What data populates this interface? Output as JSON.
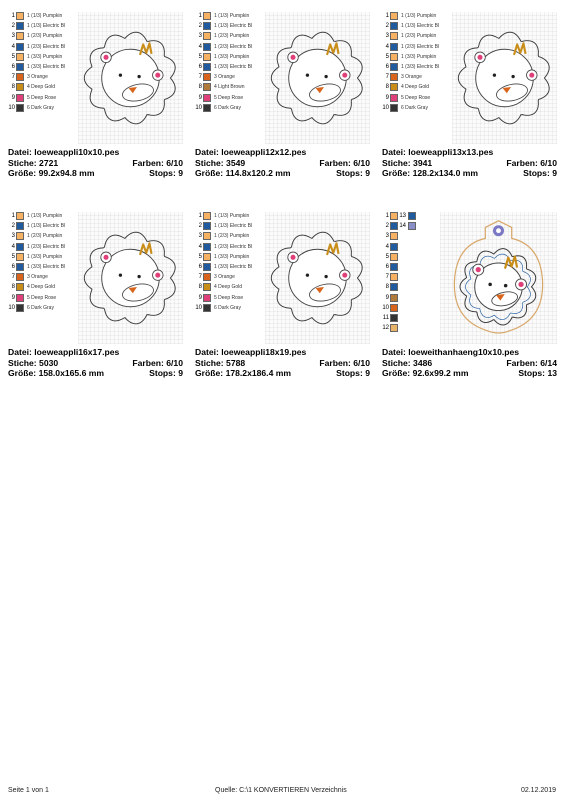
{
  "cards": [
    {
      "colors": [
        {
          "n": "1",
          "name": "1 (1/3) Pumpkin",
          "hex": "#F6B162"
        },
        {
          "n": "2",
          "name": "1 (1/3) Electric Bl",
          "hex": "#1F5B9E"
        },
        {
          "n": "3",
          "name": "1 (2/3) Pumpkin",
          "hex": "#F6B162"
        },
        {
          "n": "4",
          "name": "1 (2/3) Electric Bl",
          "hex": "#1F5B9E"
        },
        {
          "n": "5",
          "name": "1 (3/3) Pumpkin",
          "hex": "#F6B162"
        },
        {
          "n": "6",
          "name": "1 (3/3) Electric Bl",
          "hex": "#1F5B9E"
        },
        {
          "n": "7",
          "name": "3 Orange",
          "hex": "#D9651C"
        },
        {
          "n": "8",
          "name": "4 Deep Gold",
          "hex": "#C98E1A"
        },
        {
          "n": "9",
          "name": "5 Deep Rose",
          "hex": "#E0407A"
        },
        {
          "n": "10",
          "name": "6 Dark Gray",
          "hex": "#333333"
        }
      ],
      "datei_label": "Datei:",
      "file": "loeweappli10x10.pes",
      "stiche_label": "Stiche:",
      "stiche": "2721",
      "farben_label": "Farben:",
      "farben": "6/10",
      "groesse_label": "Größe:",
      "groesse": "99.2x94.8 mm",
      "stops_label": "Stops:",
      "stops": "9"
    },
    {
      "colors": [
        {
          "n": "1",
          "name": "1 (1/3) Pumpkin",
          "hex": "#F6B162"
        },
        {
          "n": "2",
          "name": "1 (1/3) Electric Bl",
          "hex": "#1F5B9E"
        },
        {
          "n": "3",
          "name": "1 (2/3) Pumpkin",
          "hex": "#F6B162"
        },
        {
          "n": "4",
          "name": "1 (2/3) Electric Bl",
          "hex": "#1F5B9E"
        },
        {
          "n": "5",
          "name": "1 (3/3) Pumpkin",
          "hex": "#F6B162"
        },
        {
          "n": "6",
          "name": "1 (3/3) Electric Bl",
          "hex": "#1F5B9E"
        },
        {
          "n": "7",
          "name": "3 Orange",
          "hex": "#D9651C"
        },
        {
          "n": "8",
          "name": "4 Light Brown",
          "hex": "#B07A3A"
        },
        {
          "n": "9",
          "name": "5 Deep Rose",
          "hex": "#E0407A"
        },
        {
          "n": "10",
          "name": "6 Dark Gray",
          "hex": "#333333"
        }
      ],
      "datei_label": "Datei:",
      "file": "loeweappli12x12.pes",
      "stiche_label": "Stiche:",
      "stiche": "3549",
      "farben_label": "Farben:",
      "farben": "6/10",
      "groesse_label": "Größe:",
      "groesse": "114.8x120.2 mm",
      "stops_label": "Stops:",
      "stops": "9"
    },
    {
      "colors": [
        {
          "n": "1",
          "name": "1 (1/3) Pumpkin",
          "hex": "#F6B162"
        },
        {
          "n": "2",
          "name": "1 (1/3) Electric Bl",
          "hex": "#1F5B9E"
        },
        {
          "n": "3",
          "name": "1 (2/3) Pumpkin",
          "hex": "#F6B162"
        },
        {
          "n": "4",
          "name": "1 (2/3) Electric Bl",
          "hex": "#1F5B9E"
        },
        {
          "n": "5",
          "name": "1 (3/3) Pumpkin",
          "hex": "#F6B162"
        },
        {
          "n": "6",
          "name": "1 (3/3) Electric Bl",
          "hex": "#1F5B9E"
        },
        {
          "n": "7",
          "name": "3 Orange",
          "hex": "#D9651C"
        },
        {
          "n": "8",
          "name": "4 Deep Gold",
          "hex": "#C98E1A"
        },
        {
          "n": "9",
          "name": "5 Deep Rose",
          "hex": "#E0407A"
        },
        {
          "n": "10",
          "name": "6 Dark Gray",
          "hex": "#333333"
        }
      ],
      "datei_label": "Datei:",
      "file": "loeweappli13x13.pes",
      "stiche_label": "Stiche:",
      "stiche": "3941",
      "farben_label": "Farben:",
      "farben": "6/10",
      "groesse_label": "Größe:",
      "groesse": "128.2x134.0 mm",
      "stops_label": "Stops:",
      "stops": "9"
    },
    {
      "colors": [
        {
          "n": "1",
          "name": "1 (1/3) Pumpkin",
          "hex": "#F6B162"
        },
        {
          "n": "2",
          "name": "1 (1/3) Electric Bl",
          "hex": "#1F5B9E"
        },
        {
          "n": "3",
          "name": "1 (2/3) Pumpkin",
          "hex": "#F6B162"
        },
        {
          "n": "4",
          "name": "1 (2/3) Electric Bl",
          "hex": "#1F5B9E"
        },
        {
          "n": "5",
          "name": "1 (3/3) Pumpkin",
          "hex": "#F6B162"
        },
        {
          "n": "6",
          "name": "1 (3/3) Electric Bl",
          "hex": "#1F5B9E"
        },
        {
          "n": "7",
          "name": "3 Orange",
          "hex": "#D9651C"
        },
        {
          "n": "8",
          "name": "4 Deep Gold",
          "hex": "#C98E1A"
        },
        {
          "n": "9",
          "name": "5 Deep Rose",
          "hex": "#E0407A"
        },
        {
          "n": "10",
          "name": "6 Dark Gray",
          "hex": "#333333"
        }
      ],
      "datei_label": "Datei:",
      "file": "loeweappli16x17.pes",
      "stiche_label": "Stiche:",
      "stiche": "5030",
      "farben_label": "Farben:",
      "farben": "6/10",
      "groesse_label": "Größe:",
      "groesse": "158.0x165.6 mm",
      "stops_label": "Stops:",
      "stops": "9"
    },
    {
      "colors": [
        {
          "n": "1",
          "name": "1 (1/3) Pumpkin",
          "hex": "#F6B162"
        },
        {
          "n": "2",
          "name": "1 (1/3) Electric Bl",
          "hex": "#1F5B9E"
        },
        {
          "n": "3",
          "name": "1 (2/3) Pumpkin",
          "hex": "#F6B162"
        },
        {
          "n": "4",
          "name": "1 (2/3) Electric Bl",
          "hex": "#1F5B9E"
        },
        {
          "n": "5",
          "name": "1 (3/3) Pumpkin",
          "hex": "#F6B162"
        },
        {
          "n": "6",
          "name": "1 (3/3) Electric Bl",
          "hex": "#1F5B9E"
        },
        {
          "n": "7",
          "name": "3 Orange",
          "hex": "#D9651C"
        },
        {
          "n": "8",
          "name": "4 Deep Gold",
          "hex": "#C98E1A"
        },
        {
          "n": "9",
          "name": "5 Deep Rose",
          "hex": "#E0407A"
        },
        {
          "n": "10",
          "name": "6 Dark Gray",
          "hex": "#333333"
        }
      ],
      "datei_label": "Datei:",
      "file": "loeweappli18x19.pes",
      "stiche_label": "Stiche:",
      "stiche": "5788",
      "farben_label": "Farben:",
      "farben": "6/10",
      "groesse_label": "Größe:",
      "groesse": "178.2x186.4 mm",
      "stops_label": "Stops:",
      "stops": "9"
    },
    {
      "colors": [
        {
          "n": "1",
          "name": "",
          "hex": "#F6B162"
        },
        {
          "n": "2",
          "name": "",
          "hex": "#1F5B9E"
        },
        {
          "n": "3",
          "name": "",
          "hex": "#F6B162"
        },
        {
          "n": "4",
          "name": "",
          "hex": "#1F5B9E"
        },
        {
          "n": "5",
          "name": "",
          "hex": "#F6B162"
        },
        {
          "n": "6",
          "name": "",
          "hex": "#1F5B9E"
        },
        {
          "n": "7",
          "name": "",
          "hex": "#F6B162"
        },
        {
          "n": "8",
          "name": "",
          "hex": "#1F5B9E"
        },
        {
          "n": "9",
          "name": "",
          "hex": "#B07A3A"
        },
        {
          "n": "10",
          "name": "",
          "hex": "#D9651C"
        },
        {
          "n": "11",
          "name": "",
          "hex": "#333333"
        },
        {
          "n": "12",
          "name": "",
          "hex": "#E8B36A"
        }
      ],
      "colors_right": [
        {
          "n": "13",
          "hex": "#1F5B9E"
        },
        {
          "n": "14",
          "hex": "#8A8FC8"
        }
      ],
      "datei_label": "Datei:",
      "file": "loeweithanhaeng10x10.pes",
      "stiche_label": "Stiche:",
      "stiche": "3486",
      "farben_label": "Farben:",
      "farben": "6/14",
      "groesse_label": "Größe:",
      "groesse": "92.6x99.2 mm",
      "stops_label": "Stops:",
      "stops": "13"
    }
  ],
  "footer": {
    "page": "Seite 1 von 1",
    "source": "Quelle: C:\\1 KONVERTIEREN Verzeichnis",
    "date": "02.12.2019"
  },
  "icons": [
    "lion-embroidery-design",
    "lion-hanger-embroidery-design"
  ]
}
